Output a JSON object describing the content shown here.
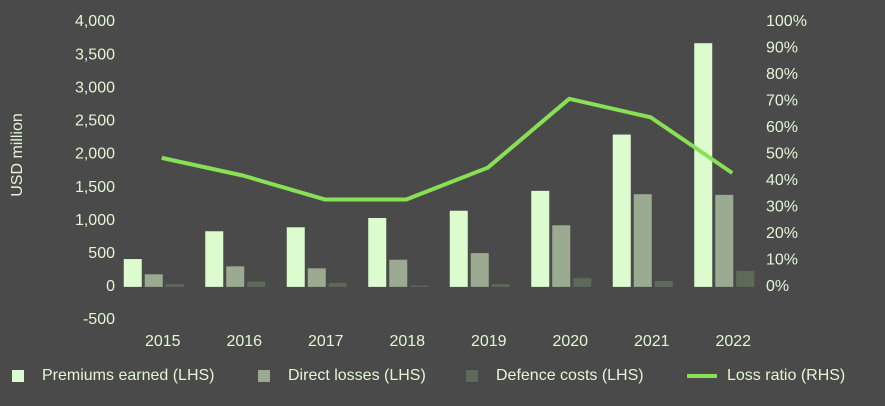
{
  "chart_data": {
    "type": "bar-line",
    "y_label": "USD million",
    "categories": [
      "2015",
      "2016",
      "2017",
      "2018",
      "2019",
      "2020",
      "2021",
      "2022"
    ],
    "series": [
      {
        "name": "Premiums earned (LHS)",
        "color": "#dcfcd0",
        "type": "bar",
        "values": [
          420,
          840,
          900,
          1040,
          1150,
          1450,
          2300,
          3680
        ]
      },
      {
        "name": "Direct losses (LHS)",
        "color": "#9aab91",
        "type": "bar",
        "values": [
          190,
          310,
          280,
          410,
          510,
          930,
          1400,
          1390
        ]
      },
      {
        "name": "Defence costs (LHS)",
        "color": "#5e6a59",
        "type": "bar",
        "values": [
          40,
          80,
          60,
          20,
          40,
          130,
          90,
          240
        ]
      },
      {
        "name": "Loss ratio (RHS)",
        "color": "#88e055",
        "type": "line",
        "axis": "y2",
        "values": [
          48.7,
          42,
          33,
          33,
          45,
          71,
          64,
          43
        ]
      }
    ],
    "ylim": [
      -500,
      4000
    ],
    "yticks": [
      {
        "value": -500,
        "label": "-500"
      },
      0,
      500,
      {
        "value": 1000,
        "label": "1,000"
      },
      {
        "value": 1500,
        "label": "1,500"
      },
      {
        "value": 2000,
        "label": "2,000"
      },
      {
        "value": 2500,
        "label": "2,500"
      },
      {
        "value": 3000,
        "label": "3,000"
      },
      {
        "value": 3500,
        "label": "3,500"
      },
      {
        "value": 4000,
        "label": "4,000"
      }
    ],
    "y2lim": [
      -12.5,
      100
    ],
    "y2ticks": [
      {
        "value": 0,
        "label": "0%"
      },
      {
        "value": 10,
        "label": "10%"
      },
      {
        "value": 20,
        "label": "20%"
      },
      {
        "value": 30,
        "label": "30%"
      },
      {
        "value": 40,
        "label": "40%"
      },
      {
        "value": 50,
        "label": "50%"
      },
      {
        "value": 60,
        "label": "60%"
      },
      {
        "value": 70,
        "label": "70%"
      },
      {
        "value": 80,
        "label": "80%"
      },
      {
        "value": 90,
        "label": "90%"
      },
      {
        "value": 100,
        "label": "100%"
      }
    ],
    "grid": false
  }
}
